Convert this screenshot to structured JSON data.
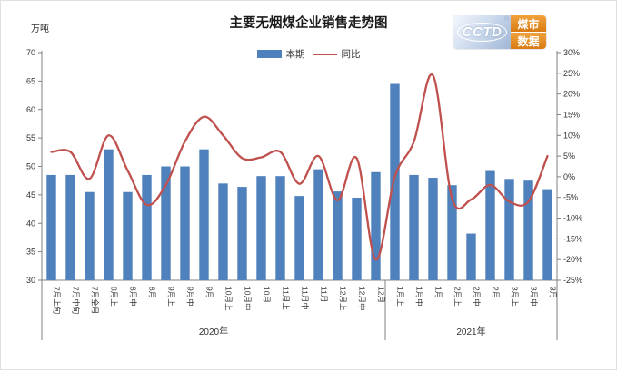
{
  "logo": {
    "brand": "CCTD",
    "reg": "®",
    "line1": "煤市",
    "line2": "数据"
  },
  "chart_data": {
    "type": "bar+line combo",
    "title": "主要无烟煤企业销售走势图",
    "unit_label": "万吨",
    "legend_position": "top-center",
    "grid": false,
    "categories": [
      "7月上旬",
      "7月中旬",
      "7月全月",
      "8月上",
      "8月中",
      "8月",
      "9月上",
      "9月中",
      "9月",
      "10月上",
      "10月中",
      "10月",
      "11月上",
      "11月中",
      "11月",
      "12月上",
      "12月中",
      "12月",
      "1月上",
      "1月中",
      "1月",
      "2月上",
      "2月中",
      "2月",
      "3月上",
      "3月中",
      "3月"
    ],
    "series": [
      {
        "name": "本期",
        "type": "bar",
        "axis": "left",
        "color": "#4f81bd",
        "values": [
          48.5,
          48.5,
          45.5,
          53.0,
          45.5,
          48.5,
          50.0,
          50.0,
          53.0,
          47.0,
          46.4,
          48.3,
          48.3,
          44.8,
          49.5,
          45.6,
          44.5,
          49.0,
          64.5,
          48.5,
          48.0,
          46.7,
          38.2,
          49.2,
          47.8,
          47.5,
          46.0
        ]
      },
      {
        "name": "同比",
        "type": "line",
        "axis": "right",
        "color": "#c0504d",
        "values_pct": [
          6,
          6,
          -0.5,
          10,
          1.5,
          -6.8,
          -2,
          8.5,
          14.5,
          10,
          4.5,
          4.7,
          6,
          -1.7,
          5,
          -5.7,
          4.5,
          -20,
          0,
          8.5,
          24.5,
          -5.3,
          -5.5,
          -2,
          -6,
          -6,
          5
        ]
      }
    ],
    "left_axis": {
      "min": 30,
      "max": 70,
      "step": 5,
      "ticks": [
        70,
        65,
        60,
        55,
        50,
        45,
        40,
        35,
        30
      ]
    },
    "right_axis": {
      "min": -25,
      "max": 30,
      "step": 5,
      "ticks": [
        "30%",
        "25%",
        "20%",
        "15%",
        "10%",
        "5%",
        "0%",
        "-5%",
        "-10%",
        "-15%",
        "-20%",
        "-25%"
      ]
    },
    "year_groups": [
      {
        "label": "2020年",
        "from": 0,
        "to": 17
      },
      {
        "label": "2021年",
        "from": 18,
        "to": 26
      }
    ]
  }
}
